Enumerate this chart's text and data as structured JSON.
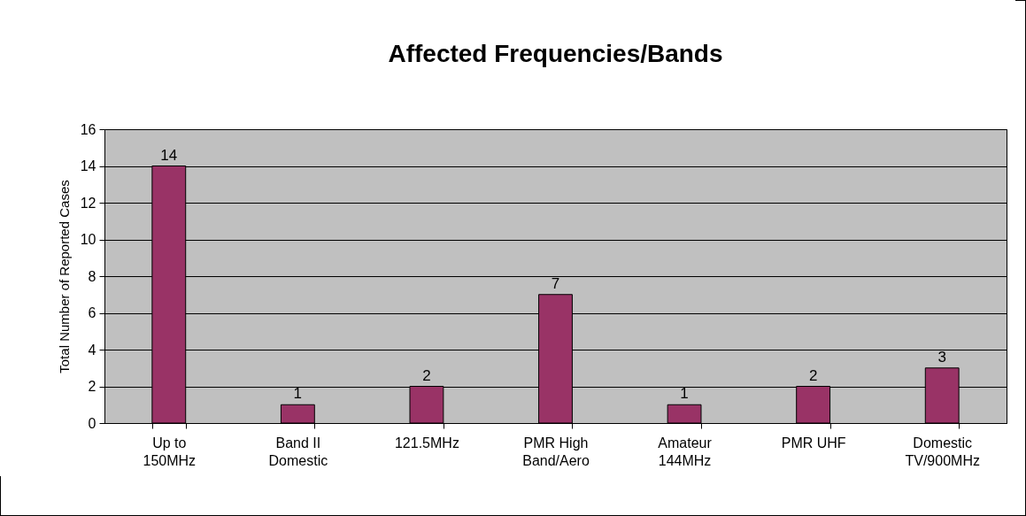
{
  "chart_data": {
    "type": "bar",
    "title": "Affected Frequencies/Bands",
    "ylabel": "Total Number of Reported Cases",
    "categories": [
      "Up to 150MHz",
      "Band II Domestic",
      "121.5MHz",
      "PMR High Band/Aero",
      "Amateur 144MHz",
      "PMR UHF",
      "Domestic TV/900MHz"
    ],
    "values": [
      14,
      1,
      2,
      7,
      1,
      2,
      3
    ],
    "color": "#993366",
    "ylim": [
      0,
      16
    ],
    "yticks": [
      0,
      2,
      4,
      6,
      8,
      10,
      12,
      14,
      16
    ],
    "grid": "y",
    "data_labels": true
  }
}
